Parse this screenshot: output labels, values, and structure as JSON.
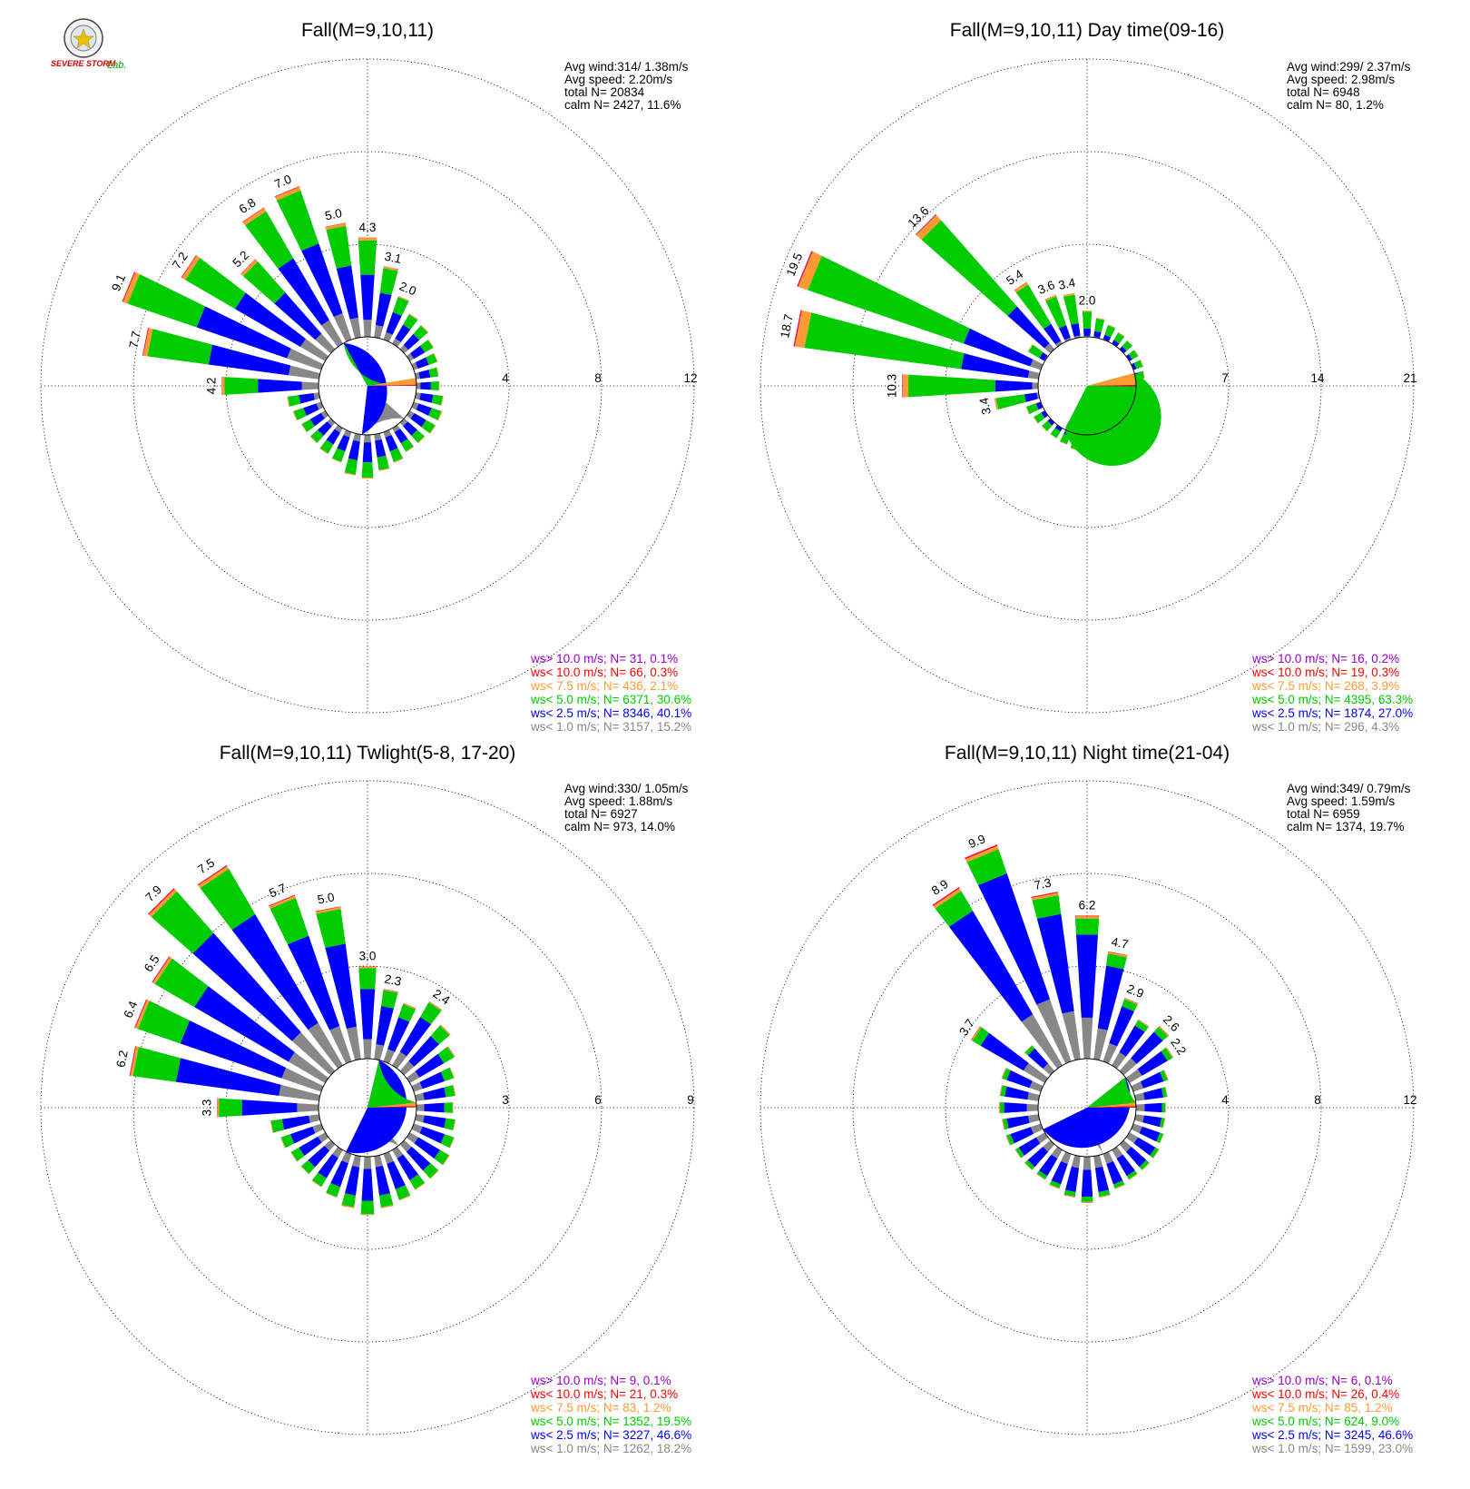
{
  "logo": {
    "text_main": "SEVERE STORM",
    "text_lab": "Lab."
  },
  "colors": {
    "gt10": "#9900cc",
    "lt10": "#ff0000",
    "lt7_5": "#ff9933",
    "lt5": "#00cc00",
    "lt2_5": "#0000ff",
    "lt1": "#888888",
    "calm": "#ffffff"
  },
  "chart_data": [
    {
      "type": "polar-bar (wind rose)",
      "title": "Fall(M=9,10,11)",
      "stats": [
        "Avg wind:314/ 1.38m/s",
        "Avg speed: 2.20m/s",
        "total N=       20834",
        "calm N=   2427,  11.6%"
      ],
      "rings": [
        4,
        8,
        12
      ],
      "ring_labels": [
        "4",
        "8",
        "12"
      ],
      "bar_labels": [
        {
          "dir": 292.5,
          "text": "9.1"
        },
        {
          "dir": 303.75,
          "text": "7.2"
        },
        {
          "dir": 315,
          "text": "5.2"
        },
        {
          "dir": 326.25,
          "text": "6.8"
        },
        {
          "dir": 337.5,
          "text": "7.0"
        },
        {
          "dir": 348.75,
          "text": "5.0"
        },
        {
          "dir": 0,
          "text": "4.3"
        },
        {
          "dir": 11.25,
          "text": "3.1"
        },
        {
          "dir": 22.5,
          "text": "2.0"
        },
        {
          "dir": 281.25,
          "text": "7.7"
        },
        {
          "dir": 270,
          "text": "4.2"
        }
      ],
      "directions": [
        0,
        11.25,
        22.5,
        33.75,
        45,
        56.25,
        67.5,
        78.75,
        90,
        101.25,
        112.5,
        123.75,
        135,
        146.25,
        157.5,
        168.75,
        180,
        191.25,
        202.5,
        213.75,
        225,
        236.25,
        247.5,
        258.75,
        270,
        281.25,
        292.5,
        303.75,
        315,
        326.25,
        337.5,
        348.75
      ],
      "totals": [
        4.3,
        3.1,
        2.0,
        1.5,
        1.4,
        1.2,
        1.1,
        1.0,
        1.0,
        1.2,
        1.3,
        1.3,
        1.2,
        1.2,
        1.4,
        1.6,
        1.9,
        1.8,
        1.4,
        1.3,
        1.2,
        1.2,
        1.3,
        1.4,
        4.2,
        7.7,
        9.1,
        7.2,
        5.2,
        6.8,
        7.0,
        5.0
      ],
      "pie": [
        {
          "name": "calm",
          "pct": 11.6
        },
        {
          "name": "ws< 1.0 m/s",
          "pct": 15.2
        },
        {
          "name": "ws< 2.5 m/s",
          "pct": 40.1
        },
        {
          "name": "ws< 5.0 m/s",
          "pct": 30.6
        },
        {
          "name": "ws< 7.5 m/s",
          "pct": 2.1
        },
        {
          "name": "ws< 10.0 m/s",
          "pct": 0.3
        },
        {
          "name": "ws> 10.0 m/s",
          "pct": 0.1
        }
      ],
      "legend": [
        {
          "text": "ws> 10.0 m/s; N=     31,  0.1%",
          "color": "#9900cc"
        },
        {
          "text": "ws< 10.0 m/s; N=     66,  0.3%",
          "color": "#ff0000"
        },
        {
          "text": "ws<  7.5 m/s; N=    436,  2.1%",
          "color": "#ff9933"
        },
        {
          "text": "ws<  5.0 m/s; N=   6371, 30.6%",
          "color": "#00cc00"
        },
        {
          "text": "ws<  2.5 m/s; N=   8346, 40.1%",
          "color": "#0000ff"
        },
        {
          "text": "ws<  1.0 m/s; N=   3157, 15.2%",
          "color": "#888888"
        }
      ]
    },
    {
      "type": "polar-bar (wind rose)",
      "title": "Fall(M=9,10,11) Day time(09-16)",
      "stats": [
        "Avg wind:299/ 2.37m/s",
        "Avg speed: 2.98m/s",
        "total N=        6948",
        "calm N=     80,   1.2%"
      ],
      "rings": [
        7,
        14,
        21
      ],
      "ring_labels": [
        "7",
        "14",
        "21"
      ],
      "bar_labels": [
        {
          "dir": 292.5,
          "text": "19.5"
        },
        {
          "dir": 281.25,
          "text": "18.7"
        },
        {
          "dir": 315,
          "text": "13.6"
        },
        {
          "dir": 270,
          "text": "10.3"
        },
        {
          "dir": 326.25,
          "text": "5.4"
        },
        {
          "dir": 337.5,
          "text": "3.6"
        },
        {
          "dir": 348.75,
          "text": "3.4"
        },
        {
          "dir": 0,
          "text": "2.0"
        },
        {
          "dir": 258.75,
          "text": "3.4"
        }
      ],
      "directions": [
        0,
        11.25,
        22.5,
        33.75,
        45,
        56.25,
        67.5,
        78.75,
        90,
        101.25,
        112.5,
        123.75,
        135,
        146.25,
        157.5,
        168.75,
        180,
        191.25,
        202.5,
        213.75,
        225,
        236.25,
        247.5,
        258.75,
        270,
        281.25,
        292.5,
        303.75,
        315,
        326.25,
        337.5,
        348.75
      ],
      "totals": [
        2.0,
        1.5,
        1.2,
        1.0,
        0.9,
        0.8,
        0.8,
        0.7,
        0.7,
        0.7,
        0.8,
        0.8,
        0.8,
        0.9,
        1.0,
        1.1,
        1.3,
        1.2,
        1.0,
        0.9,
        0.9,
        1.0,
        1.2,
        3.4,
        10.3,
        18.7,
        19.5,
        1.5,
        13.6,
        5.4,
        3.6,
        3.4
      ],
      "pie": [
        {
          "name": "calm",
          "pct": 1.2
        },
        {
          "name": "ws< 1.0 m/s",
          "pct": 4.3
        },
        {
          "name": "ws< 2.5 m/s",
          "pct": 27.0
        },
        {
          "name": "ws< 5.0 m/s",
          "pct": 63.3
        },
        {
          "name": "ws< 7.5 m/s",
          "pct": 3.9
        },
        {
          "name": "ws< 10.0 m/s",
          "pct": 0.3
        },
        {
          "name": "ws> 10.0 m/s",
          "pct": 0.2
        }
      ],
      "legend": [
        {
          "text": "ws> 10.0 m/s; N=     16,  0.2%",
          "color": "#9900cc"
        },
        {
          "text": "ws< 10.0 m/s; N=     19,  0.3%",
          "color": "#ff0000"
        },
        {
          "text": "ws<  7.5 m/s; N=    268,  3.9%",
          "color": "#ff9933"
        },
        {
          "text": "ws<  5.0 m/s; N=   4395, 63.3%",
          "color": "#00cc00"
        },
        {
          "text": "ws<  2.5 m/s; N=   1874, 27.0%",
          "color": "#0000ff"
        },
        {
          "text": "ws<  1.0 m/s; N=    296,  4.3%",
          "color": "#888888"
        }
      ]
    },
    {
      "type": "polar-bar (wind rose)",
      "title": "Fall(M=9,10,11) Twlight(5-8, 17-20)",
      "stats": [
        "Avg wind:330/ 1.05m/s",
        "Avg speed: 1.88m/s",
        "total N=        6927",
        "calm N=    973,  14.0%"
      ],
      "rings": [
        3,
        6,
        9
      ],
      "ring_labels": [
        "3",
        "6",
        "9"
      ],
      "bar_labels": [
        {
          "dir": 315,
          "text": "7.9"
        },
        {
          "dir": 326.25,
          "text": "7.5"
        },
        {
          "dir": 303.75,
          "text": "6.5"
        },
        {
          "dir": 292.5,
          "text": "6.4"
        },
        {
          "dir": 281.25,
          "text": "6.2"
        },
        {
          "dir": 337.5,
          "text": "5.7"
        },
        {
          "dir": 348.75,
          "text": "5.0"
        },
        {
          "dir": 0,
          "text": "3.0"
        },
        {
          "dir": 11.25,
          "text": "2.3"
        },
        {
          "dir": 33.75,
          "text": "2.4"
        },
        {
          "dir": 270,
          "text": "3.3"
        }
      ],
      "directions": [
        0,
        11.25,
        22.5,
        33.75,
        45,
        56.25,
        67.5,
        78.75,
        90,
        101.25,
        112.5,
        123.75,
        135,
        146.25,
        157.5,
        168.75,
        180,
        191.25,
        202.5,
        213.75,
        225,
        236.25,
        247.5,
        258.75,
        270,
        281.25,
        292.5,
        303.75,
        315,
        326.25,
        337.5,
        348.75
      ],
      "totals": [
        3.0,
        2.3,
        2.0,
        2.4,
        2.0,
        1.7,
        1.4,
        1.3,
        1.2,
        1.3,
        1.4,
        1.5,
        1.5,
        1.5,
        1.6,
        1.7,
        1.9,
        1.7,
        1.5,
        1.4,
        1.3,
        1.3,
        1.4,
        1.6,
        3.3,
        6.2,
        6.4,
        6.5,
        7.9,
        7.5,
        5.7,
        5.0
      ],
      "pie": [
        {
          "name": "calm",
          "pct": 14.0
        },
        {
          "name": "ws< 1.0 m/s",
          "pct": 18.2
        },
        {
          "name": "ws< 2.5 m/s",
          "pct": 46.6
        },
        {
          "name": "ws< 5.0 m/s",
          "pct": 19.5
        },
        {
          "name": "ws< 7.5 m/s",
          "pct": 1.2
        },
        {
          "name": "ws< 10.0 m/s",
          "pct": 0.3
        },
        {
          "name": "ws> 10.0 m/s",
          "pct": 0.1
        }
      ],
      "legend": [
        {
          "text": "ws> 10.0 m/s; N=      9,  0.1%",
          "color": "#9900cc"
        },
        {
          "text": "ws< 10.0 m/s; N=     21,  0.3%",
          "color": "#ff0000"
        },
        {
          "text": "ws<  7.5 m/s; N=     83,  1.2%",
          "color": "#ff9933"
        },
        {
          "text": "ws<  5.0 m/s; N=   1352, 19.5%",
          "color": "#00cc00"
        },
        {
          "text": "ws<  2.5 m/s; N=   3227, 46.6%",
          "color": "#0000ff"
        },
        {
          "text": "ws<  1.0 m/s; N=   1262, 18.2%",
          "color": "#888888"
        }
      ]
    },
    {
      "type": "polar-bar (wind rose)",
      "title": "Fall(M=9,10,11) Night time(21-04)",
      "stats": [
        "Avg wind:349/ 0.79m/s",
        "Avg speed: 1.59m/s",
        "total N=        6959",
        "calm N=   1374,  19.7%"
      ],
      "rings": [
        4,
        8,
        12
      ],
      "ring_labels": [
        "4",
        "8",
        "12"
      ],
      "bar_labels": [
        {
          "dir": 337.5,
          "text": "9.9"
        },
        {
          "dir": 326.25,
          "text": "8.9"
        },
        {
          "dir": 348.75,
          "text": "7.3"
        },
        {
          "dir": 0,
          "text": "6.2"
        },
        {
          "dir": 11.25,
          "text": "4.7"
        },
        {
          "dir": 22.5,
          "text": "2.9"
        },
        {
          "dir": 45,
          "text": "2.6"
        },
        {
          "dir": 56.25,
          "text": "2.2"
        },
        {
          "dir": 303.75,
          "text": "3.7"
        }
      ],
      "directions": [
        0,
        11.25,
        22.5,
        33.75,
        45,
        56.25,
        67.5,
        78.75,
        90,
        101.25,
        112.5,
        123.75,
        135,
        146.25,
        157.5,
        168.75,
        180,
        191.25,
        202.5,
        213.75,
        225,
        236.25,
        247.5,
        258.75,
        270,
        281.25,
        292.5,
        303.75,
        315,
        326.25,
        337.5,
        348.75
      ],
      "totals": [
        6.2,
        4.7,
        2.9,
        2.3,
        2.6,
        2.2,
        1.6,
        1.4,
        1.3,
        1.3,
        1.4,
        1.5,
        1.5,
        1.5,
        1.6,
        1.8,
        2.0,
        1.8,
        1.6,
        1.5,
        1.5,
        1.5,
        1.6,
        1.6,
        1.7,
        1.7,
        1.8,
        3.7,
        1.5,
        8.9,
        9.9,
        7.3
      ],
      "pie": [
        {
          "name": "calm",
          "pct": 19.7
        },
        {
          "name": "ws< 1.0 m/s",
          "pct": 23.0
        },
        {
          "name": "ws< 2.5 m/s",
          "pct": 46.6
        },
        {
          "name": "ws< 5.0 m/s",
          "pct": 9.0
        },
        {
          "name": "ws< 7.5 m/s",
          "pct": 1.2
        },
        {
          "name": "ws< 10.0 m/s",
          "pct": 0.4
        },
        {
          "name": "ws> 10.0 m/s",
          "pct": 0.1
        }
      ],
      "legend": [
        {
          "text": "ws> 10.0 m/s; N=      6,  0.1%",
          "color": "#9900cc"
        },
        {
          "text": "ws< 10.0 m/s; N=     26,  0.4%",
          "color": "#ff0000"
        },
        {
          "text": "ws<  7.5 m/s; N=     85,  1.2%",
          "color": "#ff9933"
        },
        {
          "text": "ws<  5.0 m/s; N=    624,  9.0%",
          "color": "#00cc00"
        },
        {
          "text": "ws<  2.5 m/s; N=   3245, 46.6%",
          "color": "#0000ff"
        },
        {
          "text": "ws<  1.0 m/s; N=   1599, 23.0%",
          "color": "#888888"
        }
      ]
    }
  ]
}
